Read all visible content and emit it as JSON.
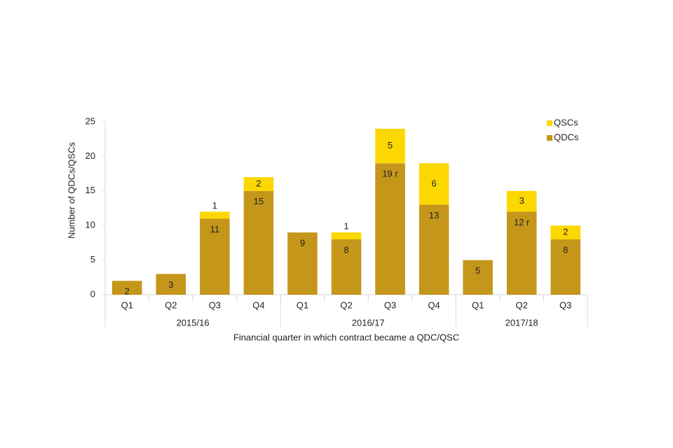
{
  "chart_data": {
    "type": "stacked-bar",
    "groups": [
      {
        "label": "2015/16",
        "categories": [
          "Q1",
          "Q2",
          "Q3",
          "Q4"
        ]
      },
      {
        "label": "2016/17",
        "categories": [
          "Q1",
          "Q2",
          "Q3",
          "Q4"
        ]
      },
      {
        "label": "2017/18",
        "categories": [
          "Q1",
          "Q2",
          "Q3"
        ]
      }
    ],
    "series": [
      {
        "name": "QDCs",
        "color": "#c4961a",
        "values": [
          2,
          3,
          11,
          15,
          9,
          8,
          19,
          13,
          5,
          12,
          8
        ],
        "value_labels": [
          "2",
          "3",
          "11",
          "15",
          "9",
          "8",
          "19 r",
          "13",
          "5",
          "12 r",
          "8"
        ]
      },
      {
        "name": "QSCs",
        "color": "#fcd700",
        "values": [
          null,
          null,
          1,
          2,
          null,
          1,
          5,
          6,
          null,
          3,
          2
        ]
      }
    ],
    "y_label": "Number of QDCs/QSCs",
    "x_label": "Financial quarter in which contract became a QDC/QSC",
    "ylim": [
      0,
      25
    ],
    "yticks": [
      0,
      5,
      10,
      15,
      20,
      25
    ],
    "legend": "top-right"
  }
}
